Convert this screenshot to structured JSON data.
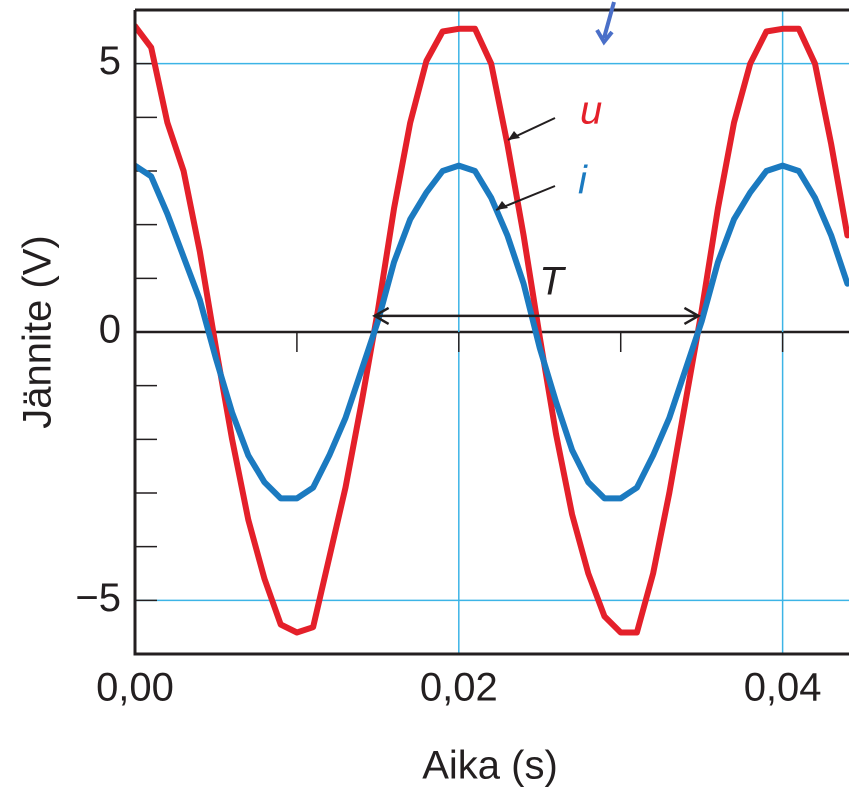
{
  "chart_data": {
    "type": "line",
    "x_label": "Aika (s)",
    "y_label": "Jännite (V)",
    "x": [
      0,
      0.001,
      0.002,
      0.003,
      0.004,
      0.005,
      0.006,
      0.007,
      0.008,
      0.009,
      0.01,
      0.011,
      0.012,
      0.013,
      0.014,
      0.015,
      0.016,
      0.017,
      0.018,
      0.019,
      0.02,
      0.021,
      0.022,
      0.023,
      0.024,
      0.025,
      0.026,
      0.027,
      0.028,
      0.029,
      0.03,
      0.031,
      0.032,
      0.033,
      0.034,
      0.035,
      0.036,
      0.037,
      0.038,
      0.039,
      0.04,
      0.041,
      0.042,
      0.043,
      0.044
    ],
    "series": [
      {
        "name": "u",
        "color": "#e4202a",
        "values": [
          5.7,
          5.3,
          3.9,
          3.0,
          1.5,
          -0.3,
          -2.0,
          -3.5,
          -4.6,
          -5.45,
          -5.6,
          -5.5,
          -4.2,
          -2.9,
          -1.3,
          0.4,
          2.3,
          3.9,
          5.05,
          5.6,
          5.65,
          5.65,
          5.0,
          3.5,
          1.8,
          -0.1,
          -1.9,
          -3.4,
          -4.5,
          -5.3,
          -5.6,
          -5.6,
          -4.5,
          -3.0,
          -1.3,
          0.4,
          2.3,
          3.9,
          5.0,
          5.6,
          5.65,
          5.65,
          5.0,
          3.5,
          1.8
        ]
      },
      {
        "name": "i",
        "color": "#1b7ac0",
        "values": [
          3.1,
          2.9,
          2.2,
          1.4,
          0.6,
          -0.5,
          -1.5,
          -2.3,
          -2.8,
          -3.1,
          -3.1,
          -2.9,
          -2.3,
          -1.6,
          -0.7,
          0.2,
          1.3,
          2.1,
          2.6,
          3.0,
          3.1,
          3.0,
          2.5,
          1.8,
          0.9,
          -0.3,
          -1.3,
          -2.2,
          -2.8,
          -3.1,
          -3.1,
          -2.9,
          -2.3,
          -1.6,
          -0.7,
          0.2,
          1.3,
          2.1,
          2.6,
          3.0,
          3.1,
          3.0,
          2.5,
          1.8,
          0.9
        ]
      }
    ],
    "xlim": [
      0,
      0.0441
    ],
    "ylim": [
      -6,
      6
    ],
    "xticks": [
      {
        "value": 0,
        "label": "0,00"
      },
      {
        "value": 0.02,
        "label": "0,02"
      },
      {
        "value": 0.04,
        "label": "0,04"
      }
    ],
    "yticks": [
      {
        "value": -5,
        "label": "−5"
      },
      0,
      5
    ],
    "x_minor_ticks": [
      0.01,
      0.03
    ],
    "y_minor_ticks": [
      -4,
      -3,
      -2,
      -1,
      1,
      2,
      3,
      4
    ],
    "grid": true,
    "grid_color": "#3cb4e6",
    "annotations": [
      {
        "text": "T",
        "x_start": 0.0148,
        "x_end": 0.0348,
        "y": 0.3
      }
    ]
  }
}
